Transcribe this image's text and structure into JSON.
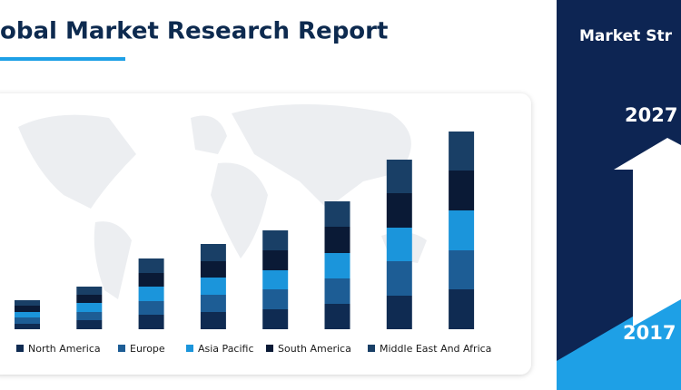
{
  "chart_data": {
    "type": "stacked-bar",
    "title": "obal Market Research Report",
    "side_title": "Market Str",
    "year_top": "2027",
    "year_bottom": "2017",
    "categories": [
      null,
      null,
      null,
      null,
      null,
      null,
      null,
      null
    ],
    "ylim": [
      0,
      218
    ],
    "legend": "bottom",
    "series": [
      {
        "name": "North America",
        "color": "#0f2b52",
        "values": [
          6,
          10,
          16,
          19,
          22,
          28,
          37,
          44
        ]
      },
      {
        "name": "Europe",
        "color": "#1d5d95",
        "values": [
          7,
          9,
          15,
          19,
          22,
          28,
          38,
          43
        ]
      },
      {
        "name": "Asia Pacific",
        "color": "#1b95db",
        "values": [
          6,
          10,
          16,
          19,
          21,
          28,
          37,
          44
        ]
      },
      {
        "name": "South America",
        "color": "#0a1a36",
        "values": [
          7,
          9,
          15,
          18,
          22,
          29,
          38,
          44
        ]
      },
      {
        "name": "Middle East And Africa",
        "color": "#193f66",
        "values": [
          6,
          9,
          16,
          19,
          22,
          28,
          37,
          43
        ]
      }
    ]
  }
}
